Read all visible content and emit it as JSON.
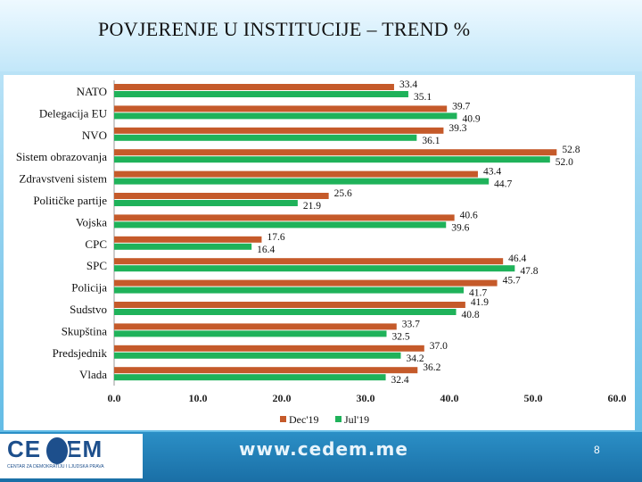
{
  "slide": {
    "title": "POVJERENJE U INSTITUCIJE – TREND %",
    "website": "www.cedem.me",
    "page_number": "8",
    "logo": {
      "text_left": "CE",
      "text_right": "EM",
      "subtitle": "CENTAR ZA DEMOKRATIJU I LJUDSKA PRAVA"
    }
  },
  "colors": {
    "dec19": "#c55a2a",
    "jul19": "#1fb25a",
    "background": "#58b7e3"
  },
  "chart_data": {
    "type": "bar",
    "orientation": "horizontal",
    "title": "POVJERENJE U INSTITUCIJE – TREND %",
    "categories": [
      "NATO",
      "Delegacija EU",
      "NVO",
      "Sistem obrazovanja",
      "Zdravstveni sistem",
      "Političke partije",
      "Vojska",
      "CPC",
      "SPC",
      "Policija",
      "Sudstvo",
      "Skupština",
      "Predsjednik",
      "Vlada"
    ],
    "series": [
      {
        "name": "Dec'19",
        "values": [
          33.4,
          39.7,
          39.3,
          52.8,
          43.4,
          25.6,
          40.6,
          17.6,
          46.4,
          45.7,
          41.9,
          33.7,
          37.0,
          36.2
        ]
      },
      {
        "name": "Jul'19",
        "values": [
          35.1,
          40.9,
          36.1,
          52.0,
          44.7,
          21.9,
          39.6,
          16.4,
          47.8,
          41.7,
          40.8,
          32.5,
          34.2,
          32.4
        ]
      }
    ],
    "value_labels": {
      "Dec'19": [
        "33.4",
        "39.7",
        "39.3",
        "52.8",
        "43.4",
        "25.6",
        "40.6",
        "17.6",
        "46.4",
        "45.7",
        "41.9",
        "33.7",
        "37.0",
        "36.2"
      ],
      "Jul'19": [
        "35.1",
        "40.9",
        "36.1",
        "52.0",
        "44.7",
        "21.9",
        "39.6",
        "16.4",
        "47.8",
        "41.7",
        "40.8",
        "32.5",
        "34.2",
        "32.4"
      ]
    },
    "xlim": [
      0,
      60
    ],
    "xticks": [
      "0.0",
      "10.0",
      "20.0",
      "30.0",
      "40.0",
      "50.0",
      "60.0"
    ],
    "legend": [
      "Dec'19",
      "Jul'19"
    ],
    "legend_position": "bottom",
    "grid": false
  }
}
